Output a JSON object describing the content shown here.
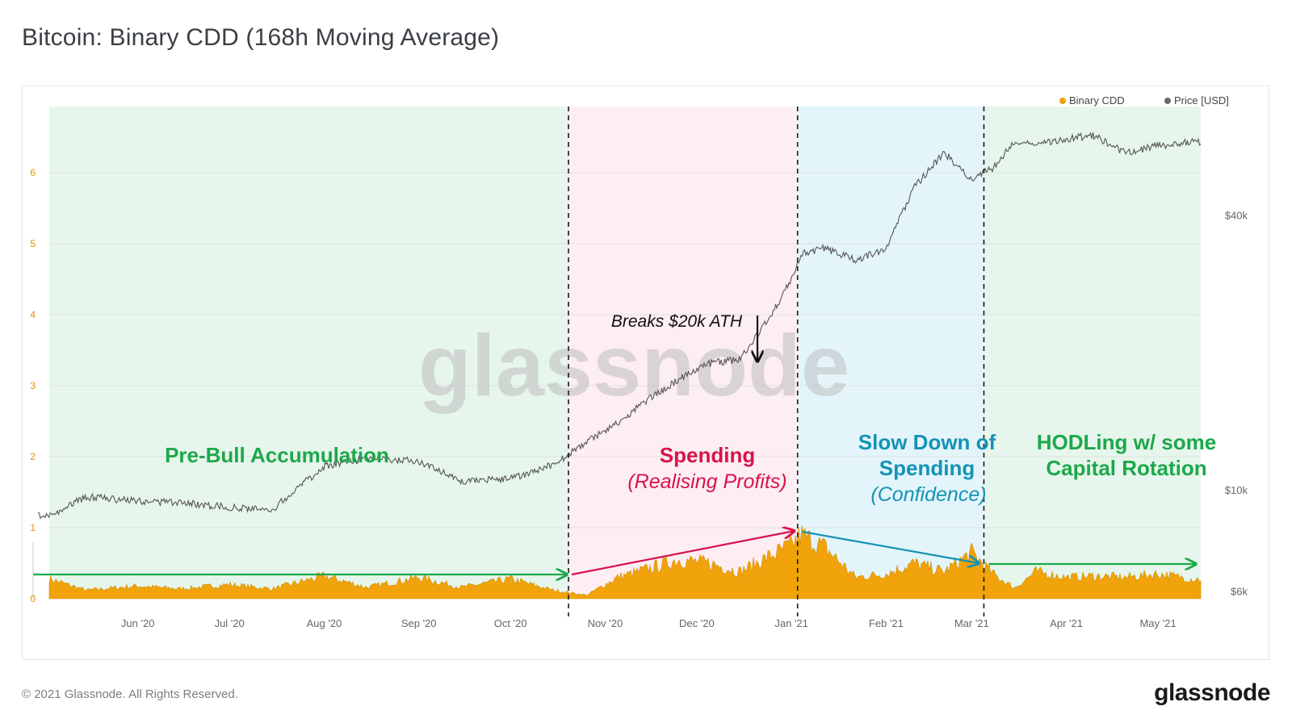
{
  "title": "Bitcoin: Binary CDD (168h Moving Average)",
  "footer": {
    "copyright": "© 2021 Glassnode. All Rights Reserved.",
    "logo": "glassnode"
  },
  "watermark": "glassnode",
  "colors": {
    "cdd": "#f0a30a",
    "price": "#555555",
    "zone_accumulation": "#e6f6ec",
    "zone_spending": "#fdeef3",
    "zone_slowdown": "#e3f5fb",
    "zone_hodl": "#e6f6ec",
    "green": "#1ca84a",
    "red": "#d9134c",
    "blue": "#1493b5"
  },
  "legend": [
    {
      "label": "Binary CDD",
      "color": "#f0a30a"
    },
    {
      "label": "Price [USD]",
      "color": "#6b6b6b"
    }
  ],
  "annotations": {
    "zone1_title": "Pre-Bull Accumulation",
    "zone2_title": "Spending",
    "zone2_sub": "(Realising Profits)",
    "zone3_title_1": "Slow Down of",
    "zone3_title_2": "Spending",
    "zone3_sub": "(Confidence)",
    "zone4_title_1": "HODLing w/ some",
    "zone4_title_2": "Capital Rotation",
    "ath_note": "Breaks $20k ATH"
  },
  "chart_data": {
    "type": "area",
    "x_ticks": [
      "Jun '20",
      "Jul '20",
      "Aug '20",
      "Sep '20",
      "Oct '20",
      "Nov '20",
      "Dec '20",
      "Jan '21",
      "Feb '21",
      "Mar '21",
      "Apr '21",
      "May '21"
    ],
    "y_left": {
      "ticks": [
        "0",
        "1",
        "2",
        "3",
        "4",
        "5",
        "6"
      ],
      "range": [
        0,
        7
      ]
    },
    "y_right": {
      "ticks": [
        "$6k",
        "$10k",
        "$40k"
      ],
      "scale": "log"
    },
    "series": [
      {
        "name": "Binary CDD",
        "axis": "left",
        "x": [
          "2020-05-03",
          "2020-05-15",
          "2020-06-01",
          "2020-06-15",
          "2020-07-01",
          "2020-07-15",
          "2020-08-01",
          "2020-08-15",
          "2020-09-01",
          "2020-09-15",
          "2020-10-01",
          "2020-10-15",
          "2020-10-26",
          "2020-11-05",
          "2020-11-15",
          "2020-11-25",
          "2020-12-05",
          "2020-12-15",
          "2020-12-25",
          "2021-01-01",
          "2021-01-04",
          "2021-01-12",
          "2021-01-22",
          "2021-02-01",
          "2021-02-10",
          "2021-02-20",
          "2021-03-01",
          "2021-03-08",
          "2021-03-15",
          "2021-03-22",
          "2021-04-01",
          "2021-04-10",
          "2021-04-20",
          "2021-05-01",
          "2021-05-12"
        ],
        "values": [
          0.28,
          0.12,
          0.18,
          0.14,
          0.2,
          0.14,
          0.32,
          0.16,
          0.3,
          0.16,
          0.28,
          0.12,
          0.05,
          0.3,
          0.42,
          0.55,
          0.5,
          0.38,
          0.6,
          0.75,
          0.9,
          0.72,
          0.3,
          0.35,
          0.5,
          0.38,
          0.65,
          0.35,
          0.15,
          0.38,
          0.3,
          0.32,
          0.3,
          0.35,
          0.28
        ]
      },
      {
        "name": "Price [USD]",
        "axis": "right",
        "x": [
          "2020-05-03",
          "2020-05-15",
          "2020-06-01",
          "2020-06-15",
          "2020-07-01",
          "2020-07-15",
          "2020-08-01",
          "2020-08-15",
          "2020-09-01",
          "2020-09-15",
          "2020-10-01",
          "2020-10-15",
          "2020-10-26",
          "2020-11-05",
          "2020-11-15",
          "2020-11-25",
          "2020-12-05",
          "2020-12-15",
          "2020-12-25",
          "2021-01-01",
          "2021-01-04",
          "2021-01-12",
          "2021-01-22",
          "2021-02-01",
          "2021-02-10",
          "2021-02-20",
          "2021-03-01",
          "2021-03-08",
          "2021-03-15",
          "2021-03-22",
          "2021-04-01",
          "2021-04-10",
          "2021-04-20",
          "2021-05-01",
          "2021-05-12"
        ],
        "values": [
          8800,
          9700,
          9500,
          9400,
          9200,
          9100,
          11300,
          11800,
          11600,
          10500,
          10600,
          11400,
          12800,
          14100,
          15800,
          17500,
          19000,
          19400,
          24000,
          29000,
          33000,
          34000,
          32000,
          34000,
          46000,
          55000,
          48000,
          51000,
          58000,
          57000,
          59000,
          60000,
          55000,
          57000,
          58000
        ]
      }
    ],
    "phase_boundaries": [
      "2020-10-20",
      "2021-01-03",
      "2021-03-05"
    ],
    "legend_position": "top-right",
    "grid": true
  }
}
